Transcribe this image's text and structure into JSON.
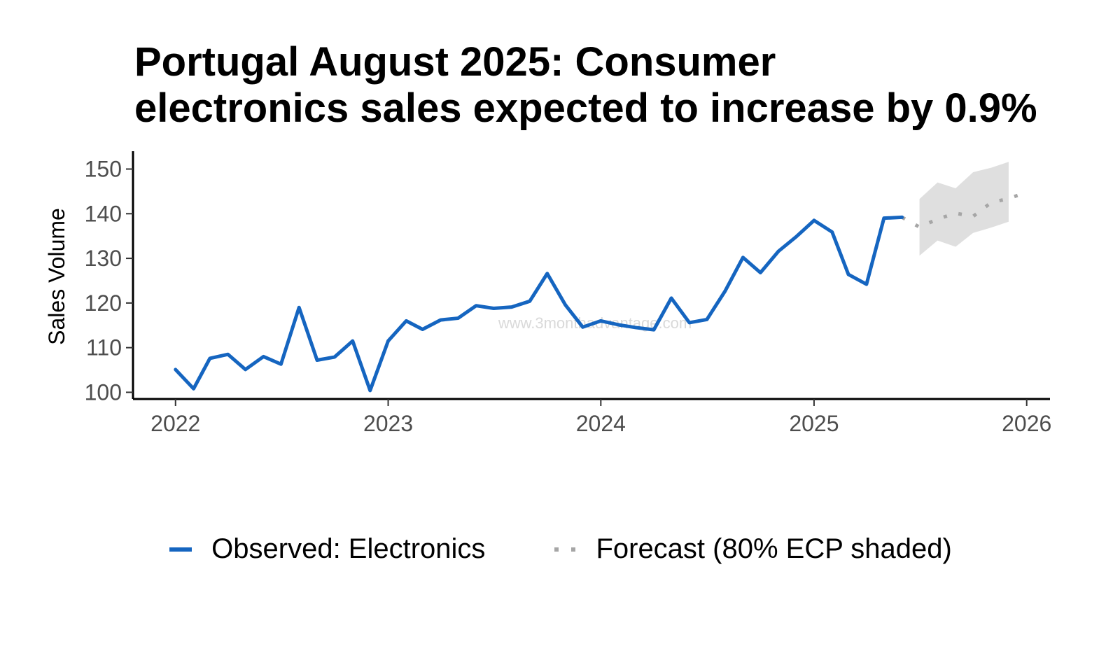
{
  "chart_data": {
    "type": "line",
    "title_lines": [
      "Portugal August 2025: Consumer",
      "electronics sales expected to increase by 0.9%"
    ],
    "xlabel": "",
    "ylabel": "Sales Volume",
    "xlim": [
      "2021-10-20",
      "2026-02-10"
    ],
    "ylim": [
      98.5,
      154
    ],
    "x_ticks": [
      {
        "date": "2022-01-01",
        "label": "2022"
      },
      {
        "date": "2023-01-01",
        "label": "2023"
      },
      {
        "date": "2024-01-01",
        "label": "2024"
      },
      {
        "date": "2025-01-01",
        "label": "2025"
      },
      {
        "date": "2026-01-01",
        "label": "2026"
      }
    ],
    "y_ticks": [
      100,
      110,
      120,
      130,
      140,
      150
    ],
    "grid": false,
    "legend_position": "bottom",
    "watermark": "www.3monthadvantage.com",
    "series": [
      {
        "name": "Observed: Electronics",
        "style": "solid",
        "color": "#1565c0",
        "points": [
          [
            "2022-01-01",
            105.1
          ],
          [
            "2022-02-01",
            100.8
          ],
          [
            "2022-03-01",
            107.6
          ],
          [
            "2022-04-01",
            108.5
          ],
          [
            "2022-05-01",
            105.1
          ],
          [
            "2022-06-01",
            108.0
          ],
          [
            "2022-07-01",
            106.3
          ],
          [
            "2022-08-01",
            119.0
          ],
          [
            "2022-09-01",
            107.2
          ],
          [
            "2022-10-01",
            107.9
          ],
          [
            "2022-11-01",
            111.5
          ],
          [
            "2022-12-01",
            100.4
          ],
          [
            "2023-01-01",
            111.5
          ],
          [
            "2023-02-01",
            116.0
          ],
          [
            "2023-03-01",
            114.1
          ],
          [
            "2023-04-01",
            116.2
          ],
          [
            "2023-05-01",
            116.6
          ],
          [
            "2023-06-01",
            119.4
          ],
          [
            "2023-07-01",
            118.8
          ],
          [
            "2023-08-01",
            119.1
          ],
          [
            "2023-09-01",
            120.4
          ],
          [
            "2023-10-01",
            126.6
          ],
          [
            "2023-11-01",
            119.6
          ],
          [
            "2023-12-01",
            114.6
          ],
          [
            "2024-01-01",
            116.0
          ],
          [
            "2024-02-01",
            115.1
          ],
          [
            "2024-03-01",
            114.5
          ],
          [
            "2024-04-01",
            114.0
          ],
          [
            "2024-05-01",
            121.1
          ],
          [
            "2024-06-01",
            115.6
          ],
          [
            "2024-07-01",
            116.3
          ],
          [
            "2024-08-01",
            122.6
          ],
          [
            "2024-09-01",
            130.2
          ],
          [
            "2024-10-01",
            126.8
          ],
          [
            "2024-11-01",
            131.6
          ],
          [
            "2024-12-01",
            134.8
          ],
          [
            "2025-01-01",
            138.5
          ],
          [
            "2025-02-01",
            135.9
          ],
          [
            "2025-03-01",
            126.4
          ],
          [
            "2025-04-01",
            124.2
          ],
          [
            "2025-05-01",
            139.0
          ],
          [
            "2025-06-01",
            139.2
          ]
        ]
      },
      {
        "name": "Forecast (80% ECP shaded)",
        "style": "dotted",
        "color": "#a6a6a6",
        "band_color": "#d9d9d9",
        "points": [
          [
            "2025-06-01",
            139.2
          ],
          [
            "2025-07-01",
            137.0
          ],
          [
            "2025-08-01",
            138.8
          ],
          [
            "2025-09-01",
            140.1
          ],
          [
            "2025-10-01",
            139.4
          ],
          [
            "2025-11-01",
            142.5
          ],
          [
            "2025-12-01",
            143.4
          ],
          [
            "2026-01-01",
            144.8
          ]
        ],
        "band": [
          [
            "2025-07-01",
            130.6,
            143.3
          ],
          [
            "2025-08-01",
            134.0,
            147.0
          ],
          [
            "2025-09-01",
            132.6,
            145.7
          ],
          [
            "2025-10-01",
            135.7,
            149.3
          ],
          [
            "2025-11-01",
            136.9,
            150.3
          ],
          [
            "2025-12-01",
            138.2,
            151.6
          ]
        ]
      }
    ]
  }
}
